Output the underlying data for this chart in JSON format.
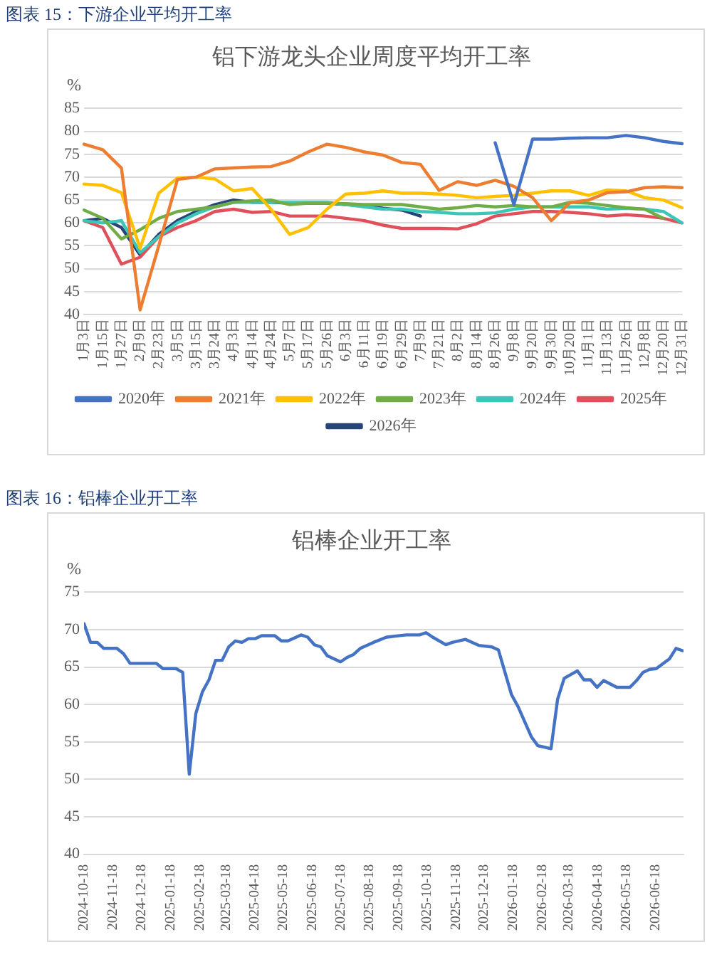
{
  "chart_data": [
    {
      "type": "line",
      "title": "铝下游龙头企业周度平均开工率",
      "ylabel": "%",
      "annotations": [
        "图表 15：下游企业平均开工率"
      ],
      "categories": [
        "1月3日",
        "1月15日",
        "1月27日",
        "2月9日",
        "2月23日",
        "3月5日",
        "3月15日",
        "3月24日",
        "4月3日",
        "4月14日",
        "4月24日",
        "5月7日",
        "5月17日",
        "5月26日",
        "6月3日",
        "6月11日",
        "6月19日",
        "6月29日",
        "7月9日",
        "7月21日",
        "8月2日",
        "8月14日",
        "8月26日",
        "9月8日",
        "9月20日",
        "9月30日",
        "10月20日",
        "11月1日",
        "11月13日",
        "11月26日",
        "12月8日",
        "12月20日",
        "12月31日"
      ],
      "series": [
        {
          "name": "2020年",
          "color": "#4472c4",
          "values": [
            null,
            null,
            null,
            null,
            null,
            null,
            null,
            null,
            null,
            null,
            null,
            null,
            null,
            null,
            null,
            null,
            null,
            null,
            null,
            null,
            null,
            null,
            77.5,
            64,
            78.3,
            78.3,
            78.5,
            78.6,
            78.6,
            79.1,
            78.6,
            77.8,
            77.3
          ]
        },
        {
          "name": "2021年",
          "color": "#ed7d31",
          "values": [
            77.2,
            76,
            72,
            41,
            55,
            69.5,
            70,
            71.8,
            72,
            72.2,
            72.3,
            73.5,
            75.5,
            77.2,
            76.5,
            75.5,
            74.8,
            73.2,
            72.8,
            67.1,
            69,
            68.2,
            69.3,
            68,
            65.5,
            60.5,
            64.4,
            65,
            66.6,
            66.8,
            67.7,
            67.9,
            67.7
          ]
        },
        {
          "name": "2022年",
          "color": "#ffc000",
          "values": [
            68.5,
            68.2,
            66.6,
            54.5,
            66.5,
            69.8,
            70,
            69.6,
            67,
            67.5,
            63,
            57.5,
            59,
            63,
            66.3,
            66.5,
            67,
            66.5,
            66.5,
            66.3,
            66,
            65.5,
            65.8,
            66,
            66.5,
            67,
            67,
            66,
            67.2,
            67,
            65.5,
            65,
            63.3
          ]
        },
        {
          "name": "2023年",
          "color": "#70ad47",
          "values": [
            62.8,
            61,
            56.5,
            58.5,
            61,
            62.5,
            63,
            63.5,
            64.5,
            64.8,
            65,
            64,
            64.3,
            64.3,
            64.2,
            64,
            64,
            64,
            63.5,
            63,
            63.3,
            63.8,
            63.5,
            63.8,
            63.5,
            63.5,
            64.5,
            64.3,
            63.8,
            63.3,
            63,
            61,
            null
          ]
        },
        {
          "name": "2024年",
          "color": "#3cc6b8",
          "values": [
            60.5,
            60,
            60.5,
            53.5,
            57,
            60,
            62,
            63.5,
            64.5,
            64.5,
            64.5,
            64.5,
            64.5,
            64.5,
            64,
            63.5,
            63,
            63,
            62.5,
            62.3,
            62,
            62,
            62.2,
            63,
            63.5,
            63.5,
            63.5,
            63.5,
            63,
            63.2,
            63,
            62.5,
            60
          ]
        },
        {
          "name": "2025年",
          "color": "#e0505a",
          "values": [
            60.5,
            59,
            51,
            52.5,
            57,
            59,
            60.5,
            62.5,
            63,
            62.3,
            62.5,
            61.5,
            61.5,
            61.5,
            61,
            60.5,
            59.5,
            58.8,
            58.8,
            58.8,
            58.7,
            59.8,
            61.5,
            62,
            62.5,
            62.5,
            62.3,
            62,
            61.5,
            61.8,
            61.5,
            61,
            60
          ]
        },
        {
          "name": "2026年",
          "color": "#264478",
          "values": [
            60.5,
            61,
            59,
            53,
            57.5,
            60.5,
            62.5,
            64,
            65,
            64.5,
            64.5,
            64.3,
            64.3,
            64.3,
            64,
            63.8,
            63.2,
            62.8,
            61.5,
            null,
            null,
            null,
            null,
            null,
            null,
            null,
            null,
            null,
            null,
            null,
            null,
            null,
            null
          ]
        }
      ],
      "ylim": [
        40,
        85
      ],
      "yticks": [
        40,
        45,
        50,
        55,
        60,
        65,
        70,
        75,
        80,
        85
      ],
      "grid": "y",
      "legend": "bottom",
      "marker": "none"
    },
    {
      "type": "line",
      "title": "铝棒企业开工率",
      "ylabel": "%",
      "annotations": [
        "图表 16：铝棒企业开工率"
      ],
      "x": [
        "2024-10-18",
        "2024-10-25",
        "2024-11-01",
        "2024-11-08",
        "2024-11-22",
        "2024-11-29",
        "2024-12-06",
        "2025-01-03",
        "2025-01-10",
        "2025-01-24",
        "2025-01-31",
        "2025-02-07",
        "2025-02-14",
        "2025-02-21",
        "2025-02-28",
        "2025-03-07",
        "2025-03-14",
        "2025-03-21",
        "2025-03-28",
        "2025-04-04",
        "2025-04-11",
        "2025-04-18",
        "2025-04-25",
        "2025-05-09",
        "2025-05-16",
        "2025-05-23",
        "2025-06-06",
        "2025-06-13",
        "2025-06-20",
        "2025-06-27",
        "2025-07-04",
        "2025-07-18",
        "2025-07-25",
        "2025-08-01",
        "2025-08-08",
        "2025-08-22",
        "2025-09-05",
        "2025-09-19",
        "2025-09-26",
        "2025-10-10",
        "2025-10-17",
        "2025-10-24",
        "2025-11-07",
        "2025-11-14",
        "2025-11-28",
        "2025-12-12",
        "2025-12-26",
        "2026-01-02",
        "2026-01-16",
        "2026-01-23",
        "2026-02-06",
        "2026-02-13",
        "2026-02-27",
        "2026-03-06",
        "2026-03-13",
        "2026-03-27",
        "2026-04-03",
        "2026-04-10",
        "2026-04-17",
        "2026-04-24",
        "2026-05-08",
        "2026-05-22",
        "2026-05-29",
        "2026-06-05",
        "2026-06-12",
        "2026-06-19",
        "2026-07-03",
        "2026-07-10",
        "2026-07-17"
      ],
      "series": [
        {
          "color": "#4472c4",
          "values": [
            70.8,
            68.3,
            68.3,
            67.5,
            67.5,
            66.8,
            65.5,
            65.5,
            64.8,
            64.8,
            64.3,
            50.7,
            58.8,
            61.7,
            63.3,
            65.9,
            65.9,
            67.7,
            68.5,
            68.3,
            68.8,
            68.8,
            69.2,
            69.2,
            68.5,
            68.5,
            69.3,
            69,
            68,
            67.7,
            66.5,
            65.7,
            66.3,
            66.7,
            67.5,
            68.3,
            69,
            69.2,
            69.3,
            69.3,
            69.6,
            69,
            68,
            68.3,
            68.7,
            67.9,
            67.7,
            67.3,
            61.3,
            59.7,
            55.7,
            54.5,
            54.1,
            60.7,
            63.5,
            64.5,
            63.3,
            63.3,
            62.3,
            63.2,
            62.3,
            62.3,
            63.2,
            64.3,
            64.7,
            64.8,
            66.1,
            67.5,
            67.2
          ]
        }
      ],
      "xlim": [
        "2024-10-18",
        "2026-07-18"
      ],
      "xticks": [
        "2024-10-18",
        "2024-11-18",
        "2024-12-18",
        "2025-01-18",
        "2025-02-18",
        "2025-03-18",
        "2025-04-18",
        "2025-05-18",
        "2025-06-18",
        "2025-07-18",
        "2025-08-18",
        "2025-09-18",
        "2025-10-18",
        "2025-11-18",
        "2025-12-18",
        "2026-01-18",
        "2026-02-18",
        "2026-03-18",
        "2026-04-18",
        "2026-05-18",
        "2026-06-18"
      ],
      "ylim": [
        40,
        75
      ],
      "yticks": [
        40,
        45,
        50,
        55,
        60,
        65,
        70,
        75
      ],
      "grid": "y",
      "marker": "none"
    }
  ]
}
